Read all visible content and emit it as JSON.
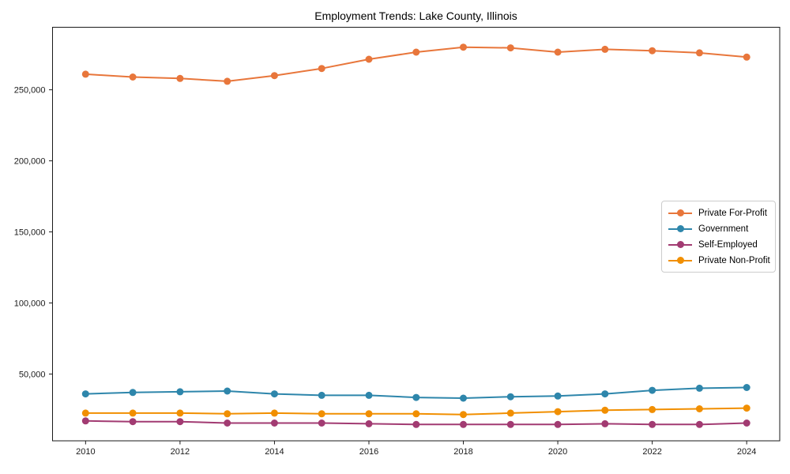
{
  "chart_data": {
    "type": "line",
    "title": "Employment Trends: Lake County, Illinois",
    "xlabel": "",
    "ylabel": "",
    "grid": false,
    "legend_position": "center right",
    "x": [
      2010,
      2011,
      2012,
      2013,
      2014,
      2015,
      2016,
      2017,
      2018,
      2019,
      2020,
      2021,
      2022,
      2023,
      2024
    ],
    "xticks": [
      2010,
      2012,
      2014,
      2016,
      2018,
      2020,
      2022,
      2024
    ],
    "xtick_labels": [
      "2010",
      "2012",
      "2014",
      "2016",
      "2018",
      "2020",
      "2022",
      "2024"
    ],
    "yticks": [
      50000,
      100000,
      150000,
      200000,
      250000
    ],
    "ytick_labels": [
      "50,000",
      "100,000",
      "150,000",
      "200,000",
      "250,000"
    ],
    "xlim": [
      2009.3,
      2024.7
    ],
    "ylim": [
      3000,
      294000
    ],
    "series": [
      {
        "name": "Private For-Profit",
        "color": "#E8763B",
        "values": [
          261000,
          259000,
          258000,
          256000,
          260000,
          265000,
          271500,
          276500,
          280000,
          279500,
          276500,
          278500,
          277500,
          276000,
          273000
        ]
      },
      {
        "name": "Government",
        "color": "#2E86AB",
        "values": [
          36000,
          37000,
          37500,
          38000,
          36000,
          35000,
          35000,
          33500,
          33000,
          34000,
          34500,
          36000,
          38500,
          40000,
          40500
        ]
      },
      {
        "name": "Self-Employed",
        "color": "#A23B72",
        "values": [
          17000,
          16500,
          16500,
          15500,
          15500,
          15500,
          15000,
          14500,
          14500,
          14500,
          14500,
          15000,
          14500,
          14500,
          15500
        ]
      },
      {
        "name": "Private Non-Profit",
        "color": "#F18F01",
        "values": [
          22500,
          22500,
          22500,
          22000,
          22500,
          22000,
          22000,
          22000,
          21500,
          22500,
          23500,
          24500,
          25000,
          25500,
          26000
        ]
      }
    ]
  }
}
